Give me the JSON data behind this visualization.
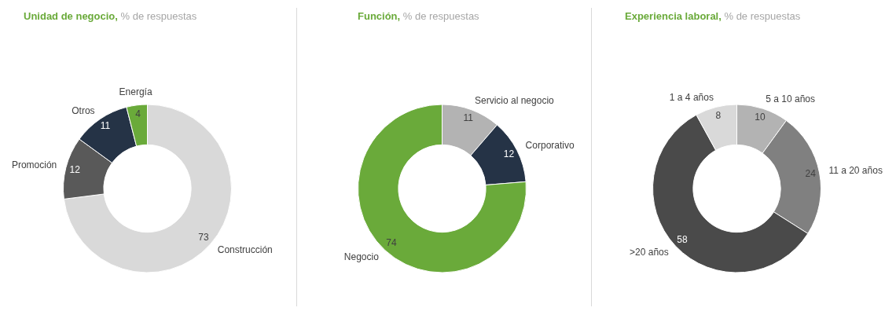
{
  "chart_data": [
    {
      "type": "donut",
      "title": "Unidad de negocio,",
      "subtitle": "% de respuestas",
      "categories": [
        "Construcción",
        "Promoción",
        "Otros",
        "Energía"
      ],
      "values": [
        73,
        12,
        11,
        4
      ],
      "colors": [
        "#d9d9d9",
        "#595959",
        "#253346",
        "#6aaa3a"
      ],
      "data_labels": true
    },
    {
      "type": "donut",
      "title": "Función,",
      "subtitle": "% de respuestas",
      "categories": [
        "Servicio al negocio",
        "Corporativo",
        "Negocio"
      ],
      "values": [
        11,
        12,
        74
      ],
      "colors": [
        "#b3b3b3",
        "#253346",
        "#6aaa3a"
      ],
      "data_labels": true
    },
    {
      "type": "donut",
      "title": "Experiencia laboral,",
      "subtitle": "% de respuestas",
      "categories": [
        "5 a 10 años",
        "11 a 20 años",
        ">20 años",
        "1 a 4 años"
      ],
      "values": [
        10,
        24,
        58,
        8
      ],
      "colors": [
        "#b3b3b3",
        "#808080",
        "#4a4a4a",
        "#d9d9d9"
      ],
      "data_labels": true
    }
  ]
}
